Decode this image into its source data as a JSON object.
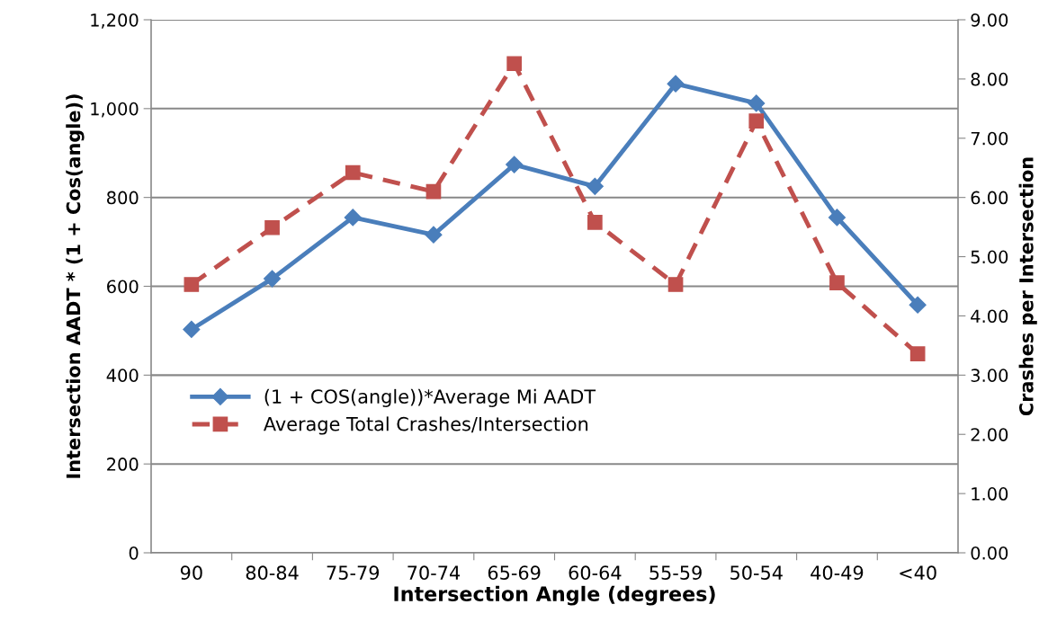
{
  "chart_data": {
    "type": "line",
    "xlabel": "Intersection Angle (degrees)",
    "ylabel": "Intersection AADT * (1 + Cos(angle))",
    "y2label": "Crashes per Intersection",
    "categories": [
      "90",
      "80-84",
      "75-79",
      "70-74",
      "65-69",
      "60-64",
      "55-59",
      "50-54",
      "40-49",
      "<40"
    ],
    "series": [
      {
        "name": "(1 + COS(angle))*Average Mi AADT",
        "color": "#4a7ebb",
        "marker": "diamond",
        "line_style": "solid",
        "values": [
          503,
          617,
          755,
          716,
          874,
          825,
          1056,
          1012,
          755,
          558
        ]
      },
      {
        "name": "Average Total Crashes/Intersection",
        "color": "#c0504d",
        "marker": "square",
        "line_style": "dashed",
        "axis": "y2",
        "values": [
          4.53,
          5.49,
          6.42,
          6.1,
          8.26,
          5.58,
          4.53,
          7.29,
          4.56,
          3.36
        ]
      }
    ],
    "ylim": [
      0,
      1200
    ],
    "yticks": [
      0,
      {
        "value": 200,
        "label": "200"
      },
      {
        "value": 400,
        "label": "400"
      },
      {
        "value": 600,
        "label": "600"
      },
      {
        "value": 800,
        "label": "800"
      },
      {
        "value": 1000,
        "label": "1,000"
      },
      {
        "value": 1200,
        "label": "1,200"
      }
    ],
    "y2lim": [
      0,
      9
    ],
    "y2ticks": [
      {
        "value": 0,
        "label": "0.00"
      },
      {
        "value": 1,
        "label": "1.00"
      },
      {
        "value": 2,
        "label": "2.00"
      },
      {
        "value": 3,
        "label": "3.00"
      },
      {
        "value": 4,
        "label": "4.00"
      },
      {
        "value": 5,
        "label": "5.00"
      },
      {
        "value": 6,
        "label": "6.00"
      },
      {
        "value": 7,
        "label": "7.00"
      },
      {
        "value": 8,
        "label": "8.00"
      },
      {
        "value": 9,
        "label": "9.00"
      }
    ],
    "grid": "y",
    "legend": "left"
  }
}
